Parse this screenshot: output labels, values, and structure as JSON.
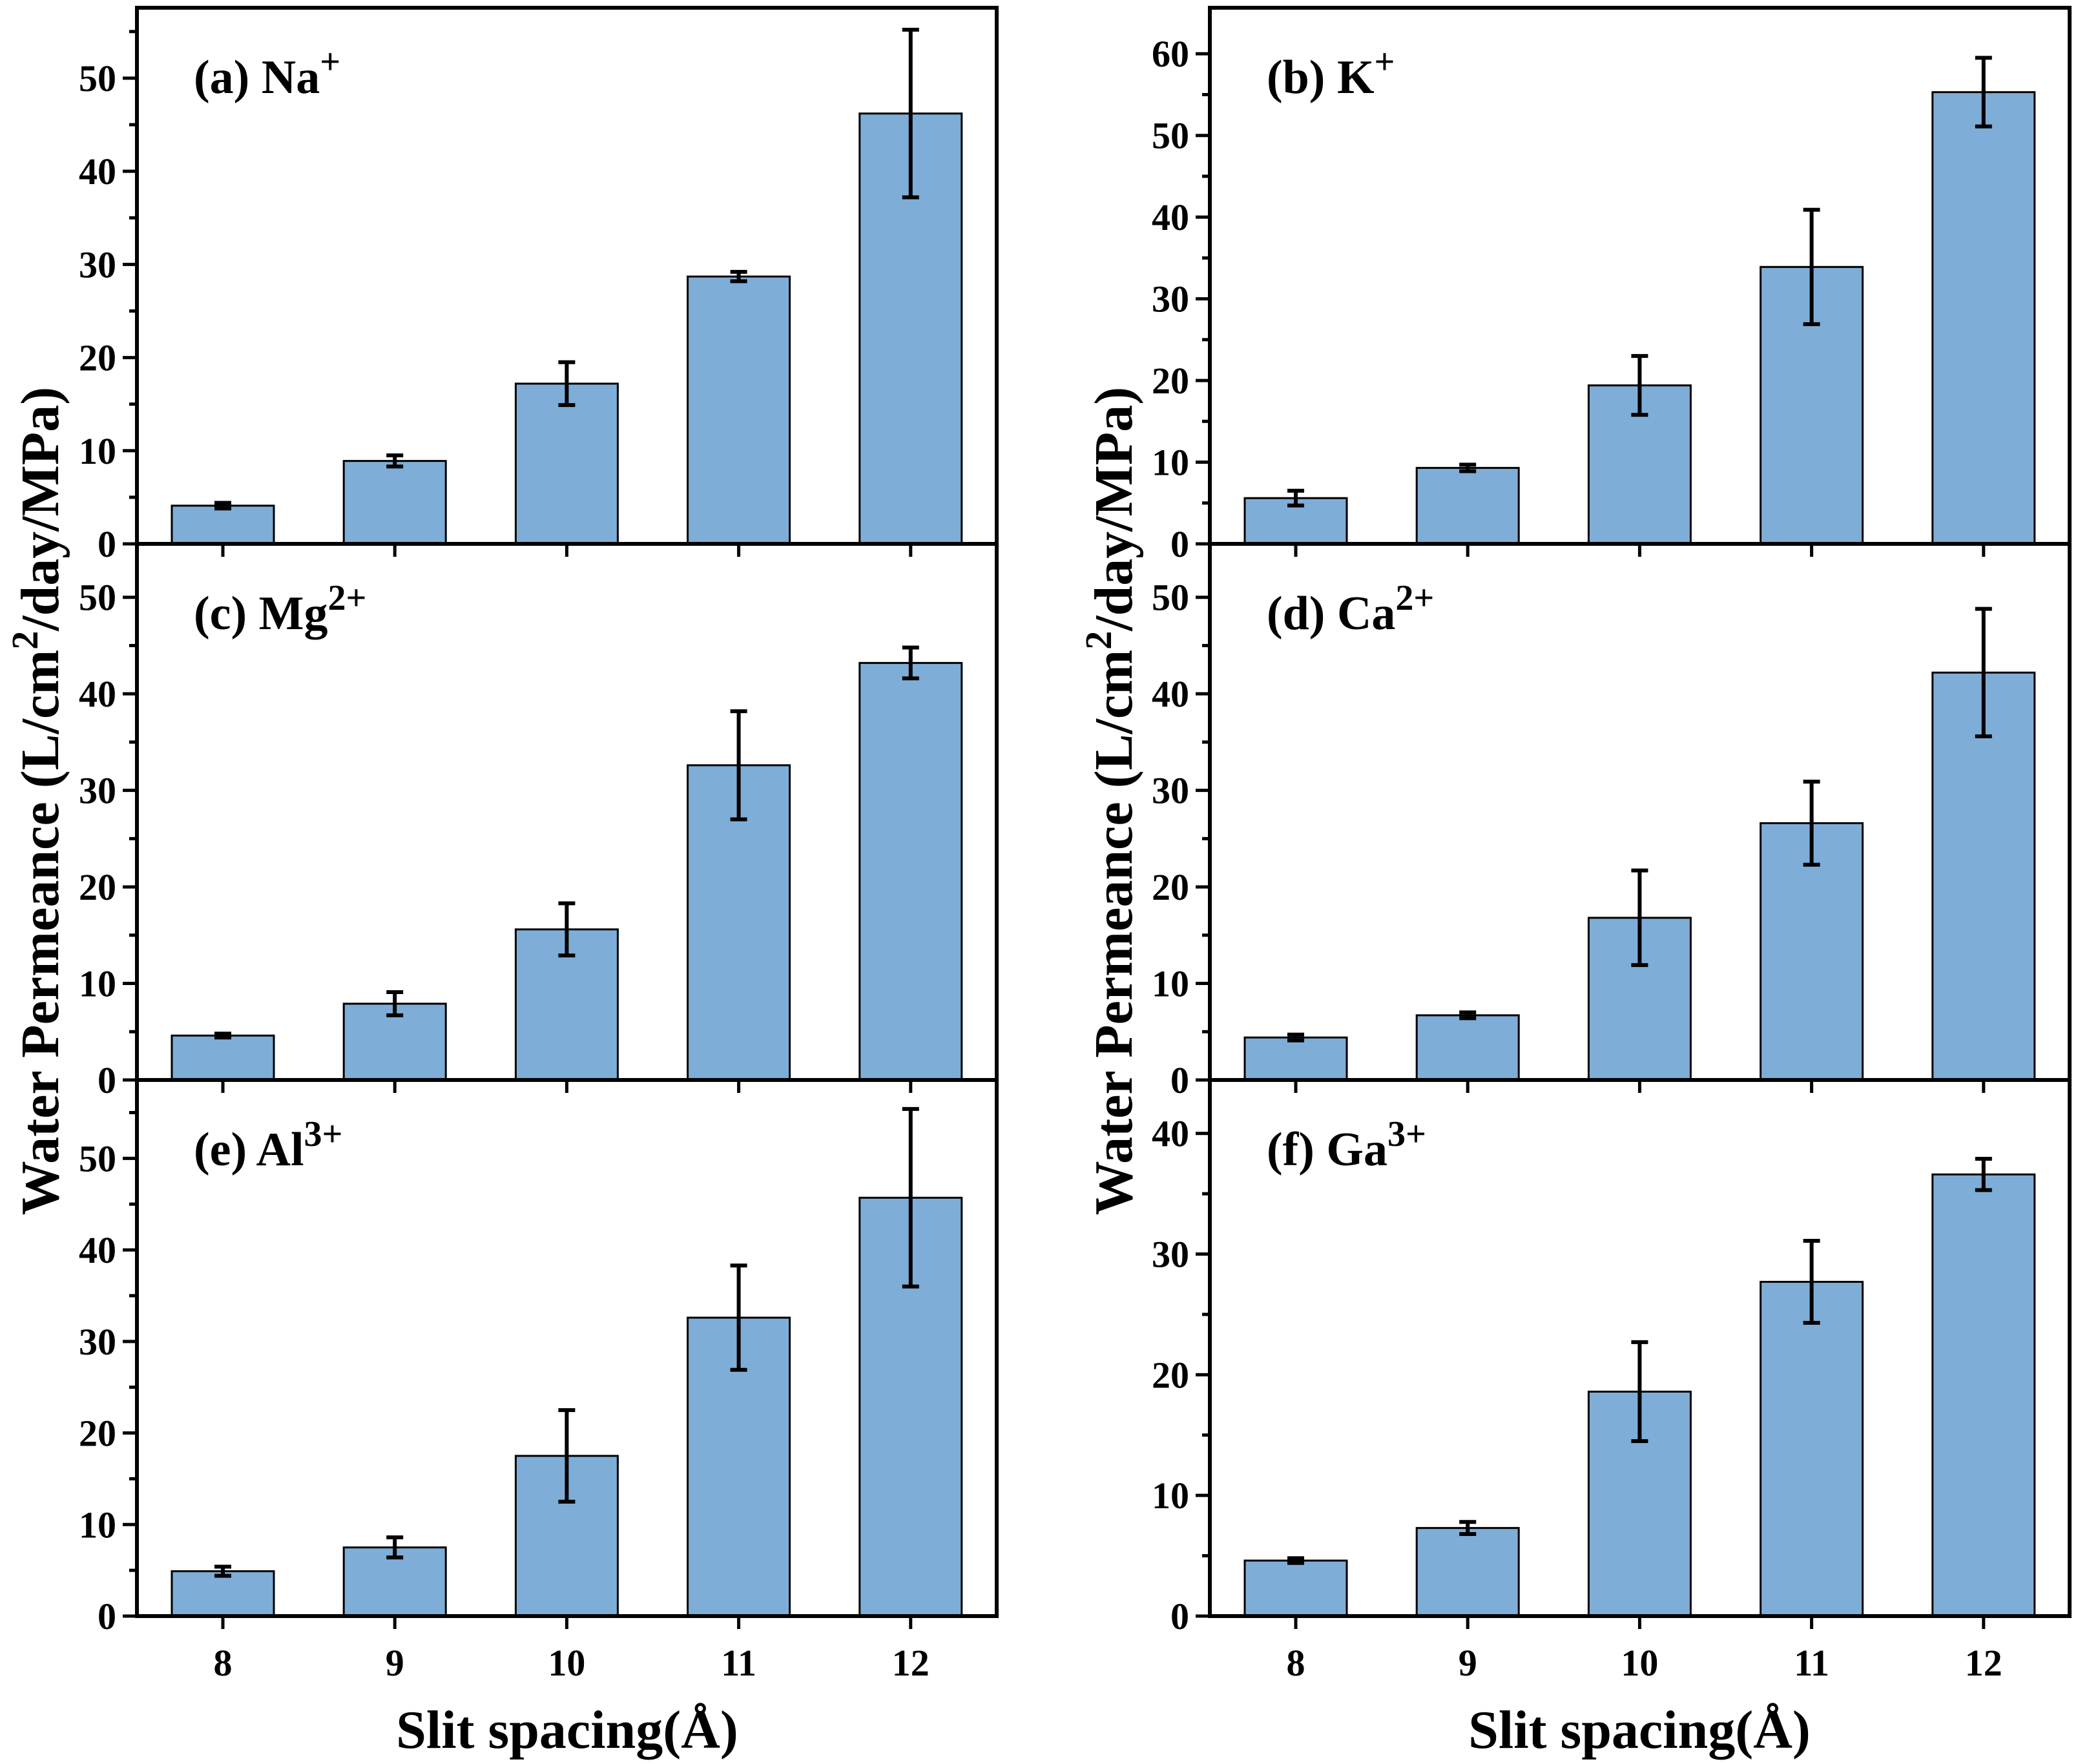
{
  "chart_data": [
    {
      "type": "bar",
      "panel_label": "(a) Na",
      "charge": "+",
      "categories": [
        "8",
        "9",
        "10",
        "11",
        "12"
      ],
      "values": [
        4.1,
        8.9,
        17.2,
        28.7,
        46.2
      ],
      "errors": [
        0.3,
        0.6,
        2.3,
        0.5,
        9.0
      ],
      "yticks": [
        0,
        10,
        20,
        30,
        40,
        50
      ],
      "ylim": [
        0,
        57
      ]
    },
    {
      "type": "bar",
      "panel_label": "(b) K",
      "charge": "+",
      "categories": [
        "8",
        "9",
        "10",
        "11",
        "12"
      ],
      "values": [
        5.6,
        9.3,
        19.4,
        33.9,
        55.3
      ],
      "errors": [
        0.9,
        0.4,
        3.6,
        7.0,
        4.2
      ],
      "yticks": [
        0,
        10,
        20,
        30,
        40,
        50,
        60
      ],
      "ylim": [
        0,
        65
      ]
    },
    {
      "type": "bar",
      "panel_label": "(c) Mg",
      "charge": "2+",
      "categories": [
        "8",
        "9",
        "10",
        "11",
        "12"
      ],
      "values": [
        4.6,
        7.9,
        15.6,
        32.6,
        43.2
      ],
      "errors": [
        0.2,
        1.2,
        2.7,
        5.6,
        1.6
      ],
      "yticks": [
        0,
        10,
        20,
        30,
        40,
        50
      ],
      "ylim": [
        0,
        55
      ]
    },
    {
      "type": "bar",
      "panel_label": "(d) Ca",
      "charge": "2+",
      "categories": [
        "8",
        "9",
        "10",
        "11",
        "12"
      ],
      "values": [
        4.4,
        6.7,
        16.8,
        26.6,
        42.2
      ],
      "errors": [
        0.3,
        0.3,
        4.9,
        4.3,
        6.6
      ],
      "yticks": [
        0,
        10,
        20,
        30,
        40,
        50
      ],
      "ylim": [
        0,
        55
      ]
    },
    {
      "type": "bar",
      "panel_label": "(e) Al",
      "charge": "3+",
      "categories": [
        "8",
        "9",
        "10",
        "11",
        "12"
      ],
      "values": [
        4.9,
        7.5,
        17.5,
        32.6,
        45.7
      ],
      "errors": [
        0.5,
        1.1,
        5.0,
        5.7,
        9.7
      ],
      "yticks": [
        0,
        10,
        20,
        30,
        40,
        50
      ],
      "ylim": [
        0,
        58
      ]
    },
    {
      "type": "bar",
      "panel_label": "(f) Ga",
      "charge": "3+",
      "categories": [
        "8",
        "9",
        "10",
        "11",
        "12"
      ],
      "values": [
        4.6,
        7.3,
        18.6,
        27.7,
        36.6
      ],
      "errors": [
        0.2,
        0.5,
        4.1,
        3.4,
        1.3
      ],
      "yticks": [
        0,
        10,
        20,
        30,
        40
      ],
      "ylim": [
        0,
        44
      ]
    }
  ],
  "ylabel_main": "Water Permeance (L/cm",
  "ylabel_sup": "2",
  "ylabel_rest": "/day/MPa)",
  "xlabel": "Slit spacing(Å)"
}
